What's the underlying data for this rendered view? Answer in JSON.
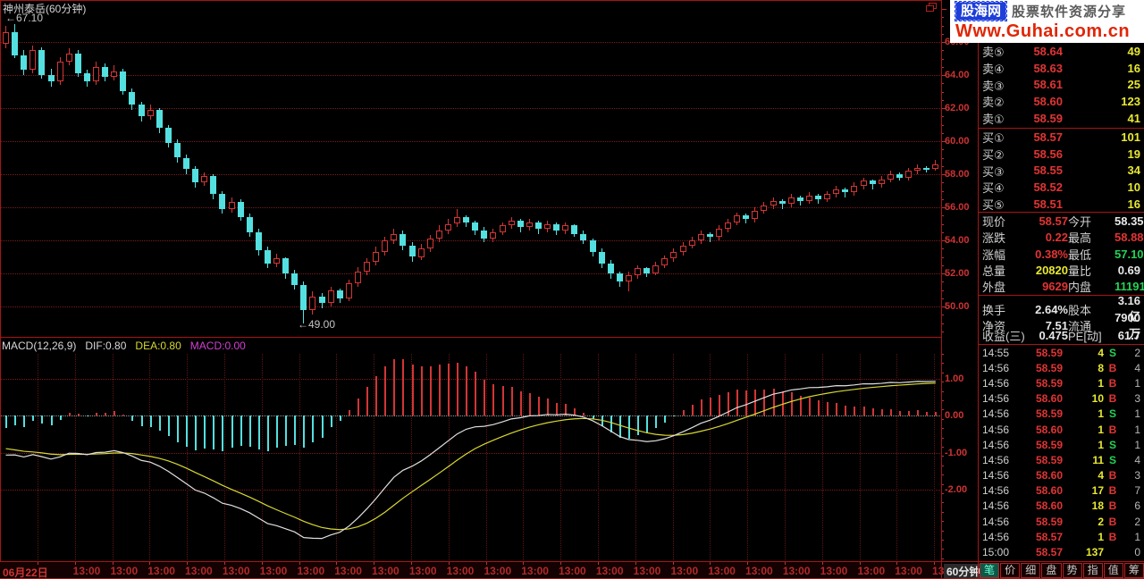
{
  "window": {
    "title": "神州泰岳(60分钟)",
    "period_label": "60分钟"
  },
  "logo": {
    "name": "股海网",
    "tagline": "股票软件资源分享",
    "url": "Www.Guhai.com.cn"
  },
  "chart_data": {
    "type": "candlestick+macd",
    "title": "神州泰岳(60分钟)",
    "high_annotation": "←67.10",
    "low_annotation": "←49.00",
    "indicator_label": {
      "name": "MACD(12,26,9)",
      "dif": "DIF:0.80",
      "dea": "DEA:0.80",
      "macd": "MACD:0.00"
    },
    "price_axis": {
      "ticks": [
        66,
        64,
        62,
        60,
        58,
        56,
        54,
        52,
        50
      ],
      "labels": [
        "66.00",
        "64.00",
        "62.00",
        "60.00",
        "58.00",
        "56.00",
        "54.00",
        "52.00",
        "50.00"
      ]
    },
    "macd_axis": {
      "ticks": [
        1,
        0,
        -1,
        -2
      ],
      "labels": [
        "1.00",
        "0.00",
        "-1.00",
        "-2.00"
      ]
    },
    "x_axis": {
      "date_label": "06月22日",
      "time_labels": [
        "13:00",
        "13:00",
        "13:00",
        "13:00",
        "13:00",
        "13:00",
        "13:00",
        "13:00",
        "13:00",
        "13:00",
        "13:00",
        "13:00",
        "13:00",
        "13:00",
        "13:00",
        "13:00",
        "13:00",
        "13:00",
        "13:00",
        "13:00",
        "13:00",
        "13:00",
        "13:00",
        "13:00"
      ]
    },
    "macd_seed": {
      "dif": -1.2,
      "dea": -0.85
    },
    "candles": [
      [
        65.9,
        67.0,
        65.6,
        66.6
      ],
      [
        66.6,
        67.1,
        65.0,
        65.2
      ],
      [
        65.2,
        65.5,
        64.0,
        64.3
      ],
      [
        64.3,
        65.8,
        64.1,
        65.5
      ],
      [
        65.5,
        65.7,
        63.8,
        64.0
      ],
      [
        64.0,
        64.4,
        63.3,
        63.6
      ],
      [
        63.6,
        65.1,
        63.4,
        64.8
      ],
      [
        64.8,
        65.6,
        64.6,
        65.3
      ],
      [
        65.3,
        65.5,
        63.9,
        64.1
      ],
      [
        64.1,
        64.3,
        63.3,
        63.6
      ],
      [
        63.6,
        64.8,
        63.4,
        64.5
      ],
      [
        64.5,
        64.7,
        63.6,
        63.9
      ],
      [
        63.9,
        64.6,
        63.7,
        64.2
      ],
      [
        64.2,
        64.4,
        62.8,
        63.0
      ],
      [
        63.0,
        63.2,
        61.9,
        62.2
      ],
      [
        62.2,
        62.4,
        61.2,
        61.5
      ],
      [
        61.5,
        62.2,
        61.3,
        61.9
      ],
      [
        61.9,
        62.0,
        60.5,
        60.8
      ],
      [
        60.8,
        61.0,
        59.6,
        59.9
      ],
      [
        59.9,
        60.1,
        58.7,
        59.0
      ],
      [
        59.0,
        59.2,
        58.0,
        58.3
      ],
      [
        58.3,
        58.5,
        57.2,
        57.5
      ],
      [
        57.5,
        58.1,
        57.3,
        57.9
      ],
      [
        57.9,
        58.0,
        56.5,
        56.8
      ],
      [
        56.8,
        57.0,
        55.6,
        55.9
      ],
      [
        55.9,
        56.6,
        55.7,
        56.3
      ],
      [
        56.3,
        56.5,
        55.2,
        55.4
      ],
      [
        55.4,
        55.6,
        54.2,
        54.5
      ],
      [
        54.5,
        54.7,
        53.1,
        53.4
      ],
      [
        53.4,
        53.6,
        52.3,
        52.6
      ],
      [
        52.6,
        53.2,
        52.4,
        52.9
      ],
      [
        52.9,
        53.0,
        51.7,
        52.0
      ],
      [
        52.0,
        52.2,
        51.0,
        51.3
      ],
      [
        51.3,
        51.5,
        49.0,
        49.8
      ],
      [
        49.8,
        50.9,
        49.5,
        50.6
      ],
      [
        50.6,
        50.8,
        49.9,
        50.2
      ],
      [
        50.2,
        51.2,
        50.0,
        51.0
      ],
      [
        51.0,
        51.1,
        50.2,
        50.5
      ],
      [
        50.5,
        51.6,
        50.3,
        51.4
      ],
      [
        51.4,
        52.4,
        51.2,
        52.1
      ],
      [
        52.1,
        52.9,
        51.9,
        52.7
      ],
      [
        52.7,
        53.6,
        52.5,
        53.3
      ],
      [
        53.3,
        54.2,
        53.1,
        54.0
      ],
      [
        54.0,
        54.7,
        53.8,
        54.4
      ],
      [
        54.4,
        54.6,
        53.4,
        53.7
      ],
      [
        53.7,
        53.9,
        52.7,
        53.0
      ],
      [
        53.0,
        53.8,
        52.8,
        53.5
      ],
      [
        53.5,
        54.3,
        53.3,
        54.1
      ],
      [
        54.1,
        54.9,
        53.9,
        54.6
      ],
      [
        54.6,
        55.3,
        54.4,
        55.0
      ],
      [
        55.0,
        55.9,
        54.8,
        55.4
      ],
      [
        55.4,
        55.5,
        54.8,
        55.1
      ],
      [
        55.1,
        55.2,
        54.3,
        54.6
      ],
      [
        54.6,
        54.8,
        53.9,
        54.1
      ],
      [
        54.1,
        54.7,
        53.9,
        54.5
      ],
      [
        54.5,
        55.1,
        54.3,
        54.9
      ],
      [
        54.9,
        55.4,
        54.7,
        55.2
      ],
      [
        55.2,
        55.3,
        54.5,
        54.8
      ],
      [
        54.8,
        55.3,
        54.6,
        55.1
      ],
      [
        55.1,
        55.2,
        54.4,
        54.7
      ],
      [
        54.7,
        55.2,
        54.5,
        55.0
      ],
      [
        55.0,
        55.1,
        54.3,
        54.6
      ],
      [
        54.6,
        55.1,
        54.4,
        54.9
      ],
      [
        54.9,
        55.0,
        54.2,
        54.4
      ],
      [
        54.4,
        54.6,
        53.8,
        54.0
      ],
      [
        54.0,
        54.1,
        53.0,
        53.3
      ],
      [
        53.3,
        53.5,
        52.3,
        52.6
      ],
      [
        52.6,
        52.8,
        51.7,
        52.0
      ],
      [
        52.0,
        52.1,
        51.2,
        51.5
      ],
      [
        51.5,
        52.1,
        50.9,
        51.9
      ],
      [
        51.9,
        52.5,
        51.7,
        52.3
      ],
      [
        52.3,
        52.4,
        51.8,
        52.0
      ],
      [
        52.0,
        52.7,
        51.9,
        52.5
      ],
      [
        52.5,
        53.1,
        52.3,
        52.9
      ],
      [
        52.9,
        53.5,
        52.7,
        53.3
      ],
      [
        53.3,
        53.9,
        53.1,
        53.7
      ],
      [
        53.7,
        54.2,
        53.5,
        54.0
      ],
      [
        54.0,
        54.6,
        53.8,
        54.4
      ],
      [
        54.4,
        54.5,
        53.9,
        54.2
      ],
      [
        54.2,
        54.9,
        54.0,
        54.7
      ],
      [
        54.7,
        55.3,
        54.5,
        55.1
      ],
      [
        55.1,
        55.7,
        54.9,
        55.5
      ],
      [
        55.5,
        55.6,
        55.0,
        55.3
      ],
      [
        55.3,
        56.0,
        55.1,
        55.8
      ],
      [
        55.8,
        56.3,
        55.6,
        56.1
      ],
      [
        56.1,
        56.6,
        55.9,
        56.4
      ],
      [
        56.4,
        56.5,
        55.9,
        56.2
      ],
      [
        56.2,
        56.8,
        56.0,
        56.6
      ],
      [
        56.6,
        56.7,
        56.1,
        56.4
      ],
      [
        56.4,
        56.9,
        56.2,
        56.7
      ],
      [
        56.7,
        56.8,
        56.2,
        56.5
      ],
      [
        56.5,
        57.0,
        56.3,
        56.8
      ],
      [
        56.8,
        57.3,
        56.6,
        57.1
      ],
      [
        57.1,
        57.2,
        56.6,
        56.9
      ],
      [
        56.9,
        57.5,
        56.7,
        57.3
      ],
      [
        57.3,
        57.8,
        57.1,
        57.6
      ],
      [
        57.6,
        57.7,
        57.1,
        57.4
      ],
      [
        57.4,
        57.9,
        57.2,
        57.7
      ],
      [
        57.7,
        58.2,
        57.5,
        58.0
      ],
      [
        58.0,
        58.1,
        57.6,
        57.8
      ],
      [
        57.8,
        58.4,
        57.6,
        58.2
      ],
      [
        58.2,
        58.6,
        58.0,
        58.4
      ],
      [
        58.4,
        58.5,
        58.1,
        58.3
      ],
      [
        58.3,
        58.88,
        58.2,
        58.57
      ]
    ]
  },
  "quote": {
    "sells": [
      {
        "label": "卖⑤",
        "price": "58.64",
        "vol": "49"
      },
      {
        "label": "卖④",
        "price": "58.63",
        "vol": "16"
      },
      {
        "label": "卖③",
        "price": "58.61",
        "vol": "25"
      },
      {
        "label": "卖②",
        "price": "58.60",
        "vol": "123"
      },
      {
        "label": "卖①",
        "price": "58.59",
        "vol": "41"
      }
    ],
    "buys": [
      {
        "label": "买①",
        "price": "58.57",
        "vol": "101"
      },
      {
        "label": "买②",
        "price": "58.56",
        "vol": "19"
      },
      {
        "label": "买③",
        "price": "58.55",
        "vol": "34"
      },
      {
        "label": "买④",
        "price": "58.52",
        "vol": "10"
      },
      {
        "label": "买⑤",
        "price": "58.51",
        "vol": "16"
      }
    ],
    "info": [
      {
        "l1": "现价",
        "v1": "58.57",
        "c1": "red",
        "l2": "今开",
        "v2": "58.35",
        "c2": "white"
      },
      {
        "l1": "涨跌",
        "v1": "0.22",
        "c1": "red",
        "l2": "最高",
        "v2": "58.88",
        "c2": "red"
      },
      {
        "l1": "涨幅",
        "v1": "0.38%",
        "c1": "red",
        "l2": "最低",
        "v2": "57.10",
        "c2": "green"
      },
      {
        "l1": "总量",
        "v1": "20820",
        "c1": "yellow",
        "l2": "量比",
        "v2": "0.69",
        "c2": "white"
      },
      {
        "l1": "外盘",
        "v1": "9629",
        "c1": "red",
        "l2": "内盘",
        "v2": "11191",
        "c2": "green"
      },
      {
        "l1": "换手",
        "v1": "2.64%",
        "c1": "white",
        "l2": "股本",
        "v2": "3.16亿",
        "c2": "white"
      },
      {
        "l1": "净资",
        "v1": "7.51",
        "c1": "white",
        "l2": "流通",
        "v2": "7900万",
        "c2": "white"
      },
      {
        "l1": "收益(三)",
        "v1": "0.475",
        "c1": "white",
        "l2": "PE[动]",
        "v2": "61.7",
        "c2": "white"
      }
    ],
    "trades": [
      {
        "time": "14:55",
        "price": "58.59",
        "vol": "4",
        "side": "S",
        "count": "2"
      },
      {
        "time": "14:56",
        "price": "58.59",
        "vol": "8",
        "side": "B",
        "count": "4"
      },
      {
        "time": "14:56",
        "price": "58.59",
        "vol": "1",
        "side": "B",
        "count": "1"
      },
      {
        "time": "14:56",
        "price": "58.60",
        "vol": "10",
        "side": "B",
        "count": "3"
      },
      {
        "time": "14:56",
        "price": "58.59",
        "vol": "1",
        "side": "S",
        "count": "1"
      },
      {
        "time": "14:56",
        "price": "58.60",
        "vol": "1",
        "side": "B",
        "count": "1"
      },
      {
        "time": "14:56",
        "price": "58.59",
        "vol": "1",
        "side": "S",
        "count": "1"
      },
      {
        "time": "14:56",
        "price": "58.59",
        "vol": "11",
        "side": "S",
        "count": "4"
      },
      {
        "time": "14:56",
        "price": "58.60",
        "vol": "4",
        "side": "B",
        "count": "3"
      },
      {
        "time": "14:56",
        "price": "58.60",
        "vol": "17",
        "side": "B",
        "count": "7"
      },
      {
        "time": "14:56",
        "price": "58.60",
        "vol": "18",
        "side": "B",
        "count": "6"
      },
      {
        "time": "14:56",
        "price": "58.59",
        "vol": "2",
        "side": "B",
        "count": "2"
      },
      {
        "time": "14:56",
        "price": "58.57",
        "vol": "1",
        "side": "B",
        "count": "1"
      },
      {
        "time": "15:00",
        "price": "58.57",
        "vol": "137",
        "side": "",
        "count": "0"
      }
    ],
    "tabs": [
      {
        "label": "笔",
        "active": true
      },
      {
        "label": "价",
        "active": false
      },
      {
        "label": "细",
        "active": false
      },
      {
        "label": "盘",
        "active": false
      },
      {
        "label": "势",
        "active": false
      },
      {
        "label": "指",
        "active": false
      },
      {
        "label": "值",
        "active": false
      },
      {
        "label": "筹",
        "active": false
      }
    ]
  }
}
